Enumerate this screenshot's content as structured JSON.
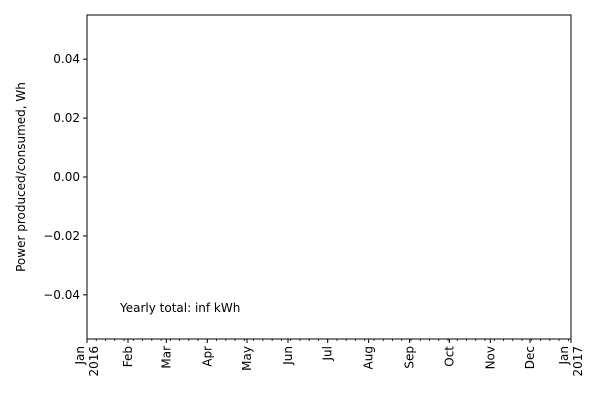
{
  "chart_data": {
    "type": "line",
    "title": "",
    "xlabel": "",
    "ylabel": "Power produced/consumed, Wh",
    "x_range": [
      "2016-01-01",
      "2017-01-01"
    ],
    "ylim": [
      -0.055,
      0.055
    ],
    "y_ticks": [
      -0.04,
      -0.02,
      0.0,
      0.02,
      0.04
    ],
    "y_tick_labels": [
      "−0.04",
      "−0.02",
      "0.00",
      "0.02",
      "0.04"
    ],
    "x_major_ticks": [
      {
        "date": "2016-01-01",
        "label": [
          "Jan",
          "2016"
        ]
      },
      {
        "date": "2016-02-01",
        "label": [
          "Feb"
        ]
      },
      {
        "date": "2016-03-01",
        "label": [
          "Mar"
        ]
      },
      {
        "date": "2016-04-01",
        "label": [
          "Apr"
        ]
      },
      {
        "date": "2016-05-01",
        "label": [
          "May"
        ]
      },
      {
        "date": "2016-06-01",
        "label": [
          "Jun"
        ]
      },
      {
        "date": "2016-07-01",
        "label": [
          "Jul"
        ]
      },
      {
        "date": "2016-08-01",
        "label": [
          "Aug"
        ]
      },
      {
        "date": "2016-09-01",
        "label": [
          "Sep"
        ]
      },
      {
        "date": "2016-10-01",
        "label": [
          "Oct"
        ]
      },
      {
        "date": "2016-11-01",
        "label": [
          "Nov"
        ]
      },
      {
        "date": "2016-12-01",
        "label": [
          "Dec"
        ]
      },
      {
        "date": "2017-01-01",
        "label": [
          "Jan",
          "2017"
        ]
      }
    ],
    "x_minor_ticks": "weekly",
    "series": [],
    "grid": false,
    "annotation": {
      "text": "Yearly total: inf kWh",
      "position": "lower-left"
    }
  }
}
